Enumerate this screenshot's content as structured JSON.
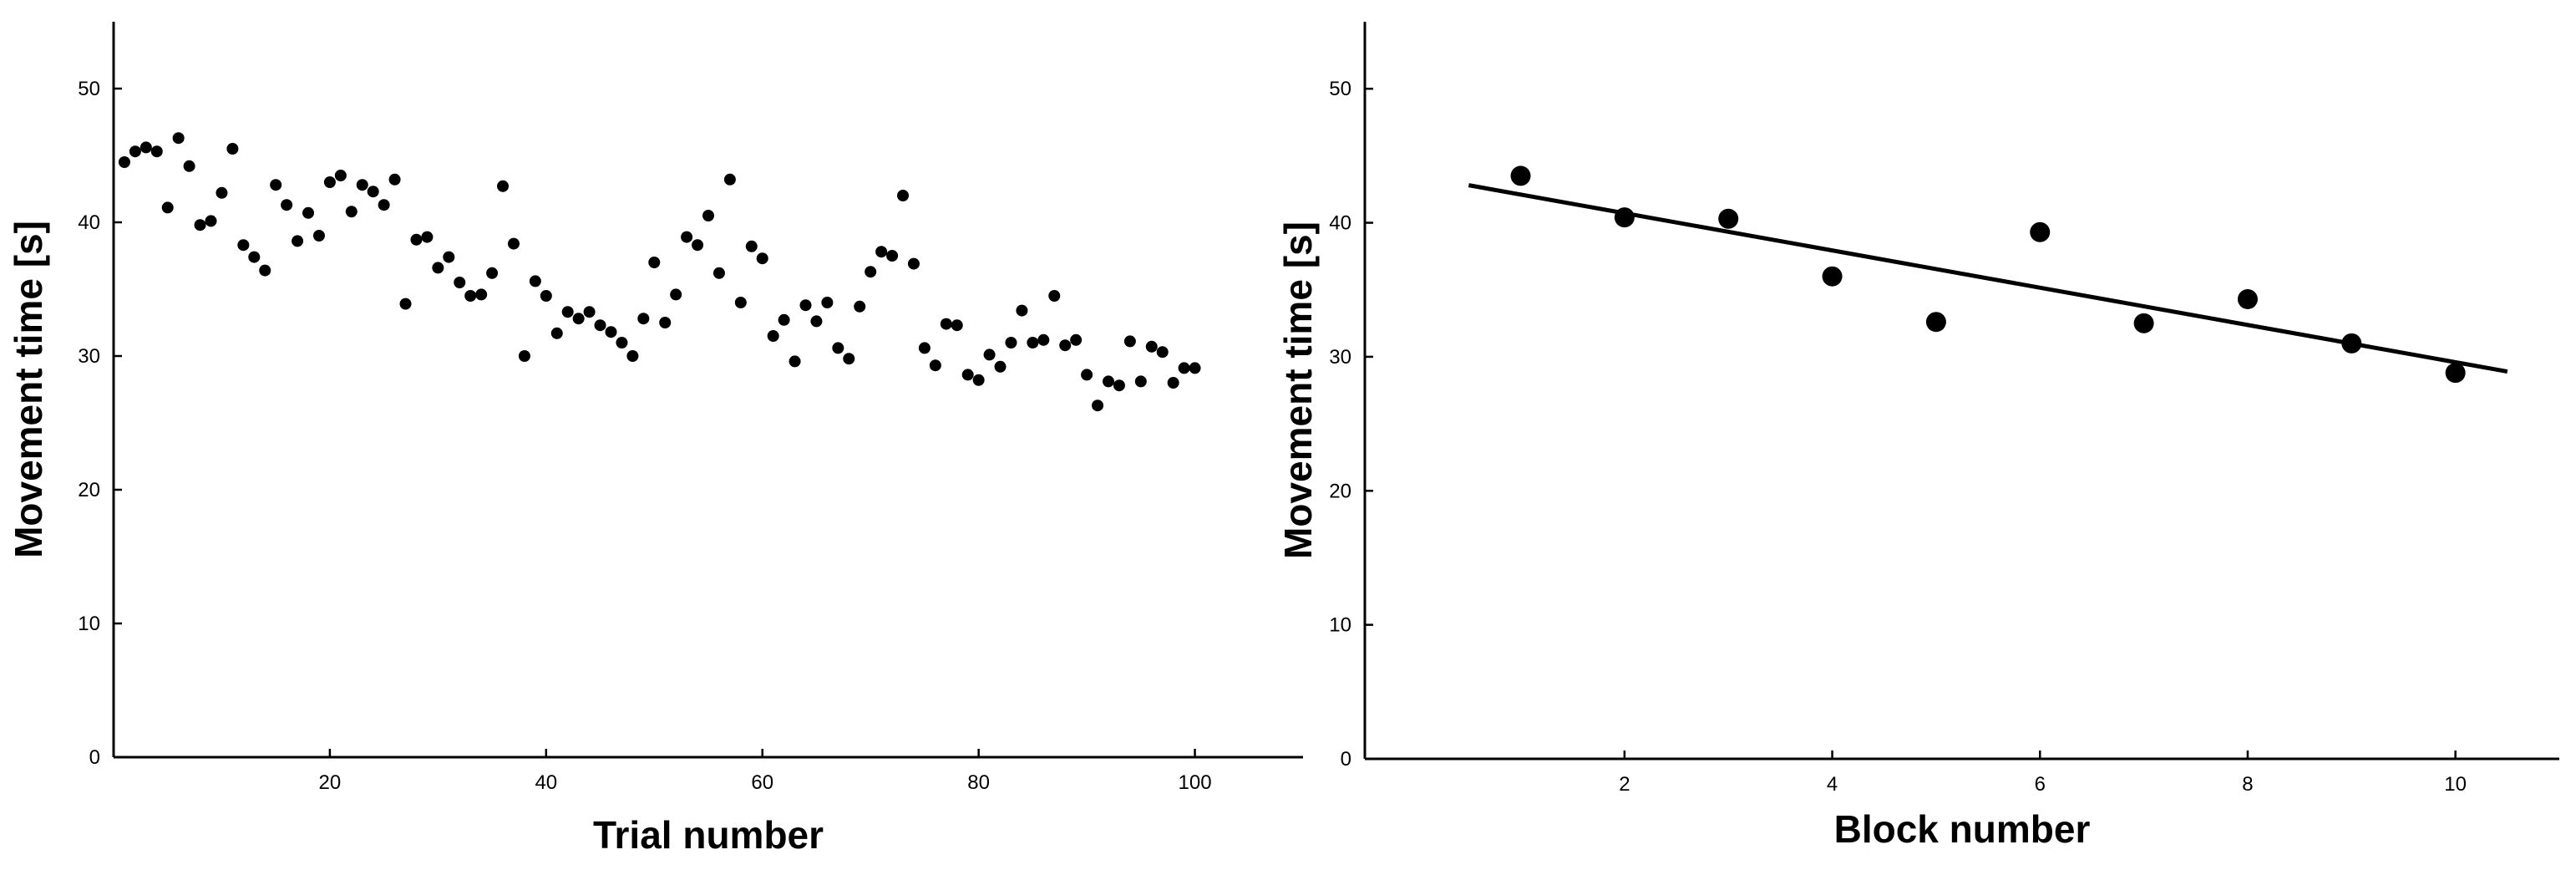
{
  "chart_data": [
    {
      "type": "scatter",
      "xlabel": "Trial number",
      "ylabel": "Movement time [s]",
      "xlim": [
        0,
        110
      ],
      "ylim": [
        0,
        55
      ],
      "xticks": [
        20,
        40,
        60,
        80,
        100
      ],
      "yticks": [
        0,
        10,
        20,
        30,
        40,
        50
      ],
      "xtick_labels": [
        "20",
        "40",
        "60",
        "80",
        "100"
      ],
      "ytick_labels": [
        "0",
        "10",
        "20",
        "30",
        "40",
        "50"
      ],
      "grid": false,
      "marker_color": "#000000",
      "series": [
        {
          "x": [
            1,
            2,
            3,
            4,
            5,
            6,
            7,
            8,
            9,
            10,
            11,
            12,
            13,
            14,
            15,
            16,
            17,
            18,
            19,
            20,
            21,
            22,
            23,
            24,
            25,
            26,
            27,
            28,
            29,
            30,
            31,
            32,
            33,
            34,
            35,
            36,
            37,
            38,
            39,
            40,
            41,
            42,
            43,
            44,
            45,
            46,
            47,
            48,
            49,
            50,
            51,
            52,
            53,
            54,
            55,
            56,
            57,
            58,
            59,
            60,
            61,
            62,
            63,
            64,
            65,
            66,
            67,
            68,
            69,
            70,
            71,
            72,
            73,
            74,
            75,
            76,
            77,
            78,
            79,
            80,
            81,
            82,
            83,
            84,
            85,
            86,
            87,
            88,
            89,
            90,
            91,
            92,
            93,
            94,
            95,
            96,
            97,
            98,
            99,
            100
          ],
          "y": [
            44.5,
            45.3,
            45.6,
            45.3,
            41.1,
            46.3,
            44.2,
            39.8,
            40.1,
            42.2,
            45.5,
            38.3,
            37.4,
            36.4,
            42.8,
            41.3,
            38.6,
            40.7,
            39.0,
            43.0,
            43.5,
            40.8,
            42.8,
            42.3,
            41.3,
            43.2,
            33.9,
            38.7,
            38.9,
            36.6,
            37.4,
            35.5,
            34.5,
            34.6,
            36.2,
            42.7,
            38.4,
            30.0,
            35.6,
            34.5,
            31.7,
            33.3,
            32.8,
            33.3,
            32.3,
            31.8,
            31.0,
            30.0,
            32.8,
            37.0,
            32.5,
            34.6,
            38.9,
            38.3,
            40.5,
            36.2,
            43.2,
            34.0,
            38.2,
            37.3,
            31.5,
            32.7,
            29.6,
            33.8,
            32.6,
            34.0,
            30.6,
            29.8,
            33.7,
            36.3,
            37.8,
            37.5,
            42.0,
            36.9,
            30.6,
            29.3,
            32.4,
            32.3,
            28.6,
            28.2,
            30.1,
            29.2,
            31.0,
            33.4,
            31.0,
            31.2,
            34.5,
            30.8,
            31.2,
            28.6,
            26.3,
            28.1,
            27.8,
            31.1,
            28.1,
            30.7,
            30.3,
            28.0,
            29.1,
            29.1
          ]
        }
      ]
    },
    {
      "type": "scatter",
      "xlabel": "Block number",
      "ylabel": "Movement time [s]",
      "xlim": [
        -0.5,
        11
      ],
      "ylim": [
        0,
        55
      ],
      "xticks": [
        2,
        4,
        6,
        8,
        10
      ],
      "yticks": [
        0,
        10,
        20,
        30,
        40,
        50
      ],
      "xtick_labels": [
        "2",
        "4",
        "6",
        "8",
        "10"
      ],
      "ytick_labels": [
        "0",
        "10",
        "20",
        "30",
        "40",
        "50"
      ],
      "grid": false,
      "marker_color": "#000000",
      "series": [
        {
          "x": [
            1,
            2,
            3,
            4,
            5,
            6,
            7,
            8,
            9,
            10
          ],
          "y": [
            43.5,
            40.4,
            40.3,
            36.0,
            32.6,
            39.3,
            32.5,
            34.3,
            31.0,
            28.8
          ]
        }
      ],
      "trendline": {
        "x": [
          0.5,
          10.5
        ],
        "y": [
          42.8,
          28.9
        ]
      }
    }
  ]
}
